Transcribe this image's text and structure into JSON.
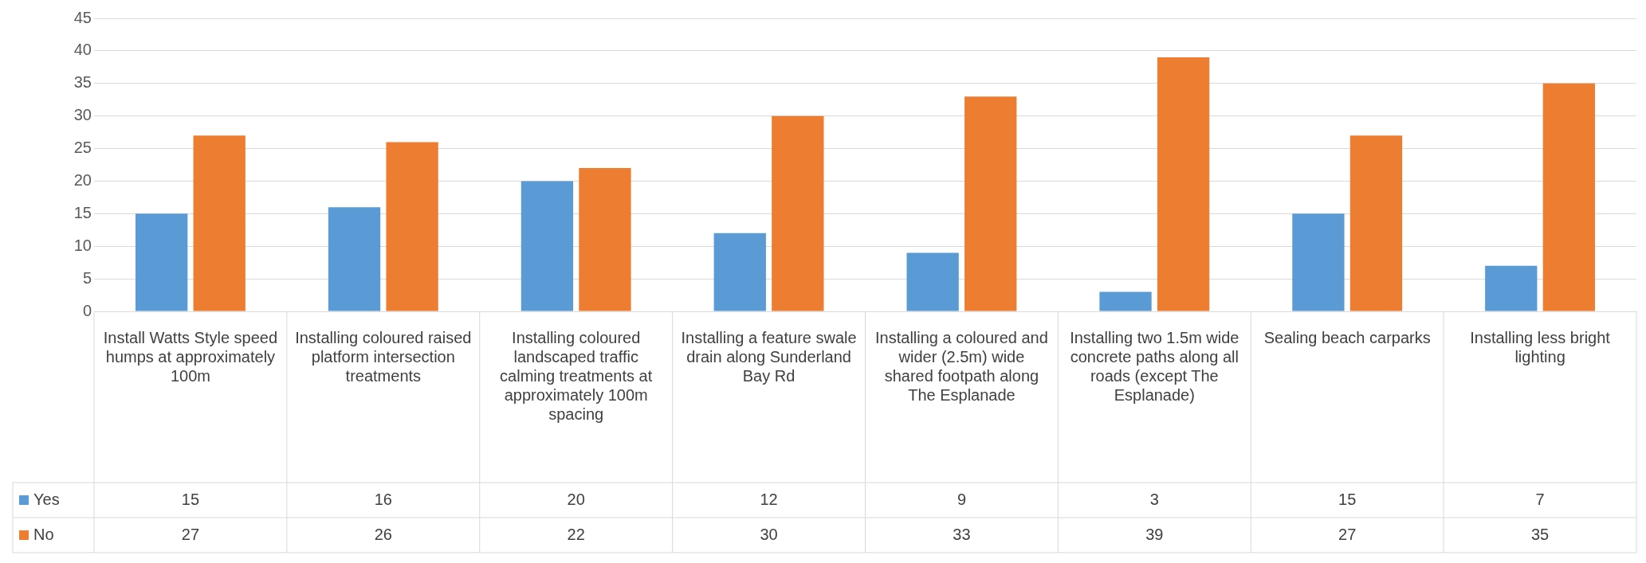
{
  "chart_data": {
    "type": "bar",
    "categories": [
      "Install Watts Style speed humps at approximately 100m",
      "Installing coloured raised platform intersection treatments",
      "Installing coloured landscaped traffic calming treatments at approximately 100m spacing",
      "Installing a feature swale drain along Sunderland Bay Rd",
      "Installing a coloured and wider (2.5m) wide shared footpath along The Esplanade",
      "Installing two 1.5m wide concrete paths along all roads (except The Esplanade)",
      "Sealing beach carparks",
      "Installing less bright lighting"
    ],
    "series": [
      {
        "name": "Yes",
        "color": "#5b9bd5",
        "values": [
          15,
          16,
          20,
          12,
          9,
          3,
          15,
          7
        ]
      },
      {
        "name": "No",
        "color": "#ed7d31",
        "values": [
          27,
          26,
          22,
          30,
          33,
          39,
          27,
          35
        ]
      }
    ],
    "ylim": [
      0,
      45
    ],
    "yticks": [
      0,
      5,
      10,
      15,
      20,
      25,
      30,
      35,
      40,
      45
    ],
    "grid": "y",
    "legend": "bottom",
    "data_labels": true
  }
}
